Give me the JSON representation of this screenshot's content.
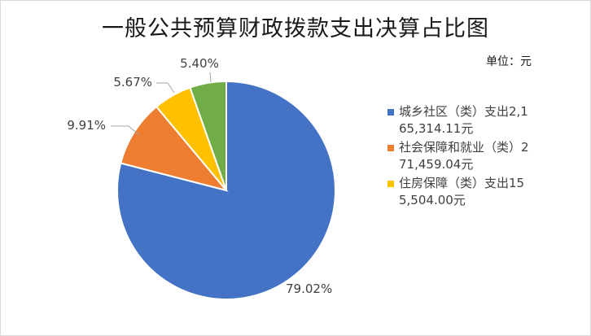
{
  "chart_data": {
    "type": "pie",
    "title": "一般公共预算财政拨款支出决算占比图",
    "unit_label": "单位：元",
    "slices": [
      {
        "legend": "城乡社区（类）支出2,165,314.11元",
        "percent": 79.02,
        "label": "79.02%",
        "color": "#4472C4"
      },
      {
        "legend": "社会保障和就业（类）271,459.04元",
        "percent": 9.91,
        "label": "9.91%",
        "color": "#ED7D31"
      },
      {
        "legend": "住房保障（类）支出155,504.00元",
        "percent": 5.67,
        "label": "5.67%",
        "color": "#FFC000"
      },
      {
        "legend": "",
        "percent": 5.4,
        "label": "5.40%",
        "color": "#70AD47"
      }
    ],
    "legend_position": "right"
  }
}
